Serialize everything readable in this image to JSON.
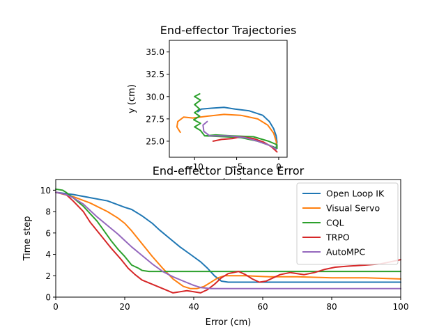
{
  "colors": {
    "Open Loop IK": "#1f77b4",
    "Visual Servo": "#ff7f0e",
    "CQL": "#2ca02c",
    "TRPO": "#d62728",
    "AutoMPC": "#9467bd"
  },
  "chart_data": [
    {
      "type": "line",
      "title": "End-effector Trajectories",
      "xlabel": "x (cm)",
      "ylabel": "y (cm)",
      "xlim": [
        -13,
        1
      ],
      "ylim": [
        23.2,
        36.3
      ],
      "xticks": [
        -10,
        -5,
        0
      ],
      "xtick_labels": [
        "−10",
        "−5",
        "0"
      ],
      "yticks": [
        25.0,
        27.5,
        30.0,
        32.5,
        35.0
      ],
      "ytick_labels": [
        "25.0",
        "27.5",
        "30.0",
        "32.5",
        "35.0"
      ],
      "grid": false,
      "legend": "none",
      "series": [
        {
          "name": "Open Loop IK",
          "points": [
            [
              -0.3,
              24.3
            ],
            [
              -0.2,
              24.9
            ],
            [
              -0.3,
              25.6
            ],
            [
              -0.6,
              26.4
            ],
            [
              -1.1,
              27.2
            ],
            [
              -1.9,
              27.9
            ],
            [
              -3.5,
              28.4
            ],
            [
              -5.2,
              28.6
            ],
            [
              -6.5,
              28.8
            ],
            [
              -8.0,
              28.7
            ],
            [
              -9.2,
              28.6
            ],
            [
              -9.6,
              28.3
            ]
          ]
        },
        {
          "name": "Visual Servo",
          "points": [
            [
              -0.2,
              24.3
            ],
            [
              -0.3,
              25.0
            ],
            [
              -0.6,
              25.9
            ],
            [
              -1.3,
              26.8
            ],
            [
              -2.5,
              27.5
            ],
            [
              -4.5,
              27.9
            ],
            [
              -6.5,
              28.0
            ],
            [
              -8.5,
              27.8
            ],
            [
              -10.2,
              27.6
            ],
            [
              -11.3,
              27.7
            ],
            [
              -12.0,
              27.2
            ],
            [
              -12.1,
              26.6
            ],
            [
              -11.7,
              26.0
            ]
          ]
        },
        {
          "name": "CQL",
          "points": [
            [
              -9.4,
              30.3
            ],
            [
              -10.0,
              30.0
            ],
            [
              -9.3,
              29.6
            ],
            [
              -10.0,
              29.1
            ],
            [
              -9.4,
              28.6
            ],
            [
              -10.0,
              28.2
            ],
            [
              -9.4,
              27.8
            ],
            [
              -10.1,
              27.4
            ],
            [
              -9.3,
              27.0
            ],
            [
              -10.0,
              26.6
            ],
            [
              -9.3,
              26.2
            ],
            [
              -8.8,
              25.6
            ],
            [
              -6.5,
              25.5
            ],
            [
              -4.5,
              25.4
            ],
            [
              -2.5,
              25.0
            ],
            [
              -1.0,
              24.5
            ],
            [
              -0.2,
              24.2
            ],
            [
              -0.2,
              24.6
            ],
            [
              -1.2,
              25.0
            ],
            [
              -3.0,
              25.5
            ],
            [
              -5.5,
              25.6
            ],
            [
              -7.5,
              25.7
            ],
            [
              -8.8,
              25.6
            ]
          ]
        },
        {
          "name": "TRPO",
          "points": [
            [
              -7.8,
              25.0
            ],
            [
              -6.8,
              25.2
            ],
            [
              -5.5,
              25.3
            ],
            [
              -4.5,
              25.5
            ],
            [
              -3.0,
              25.3
            ],
            [
              -1.8,
              24.9
            ],
            [
              -0.9,
              24.4
            ],
            [
              -0.2,
              23.8
            ]
          ]
        },
        {
          "name": "AutoMPC",
          "points": [
            [
              -8.5,
              27.2
            ],
            [
              -9.0,
              26.8
            ],
            [
              -8.9,
              26.1
            ],
            [
              -8.2,
              25.6
            ],
            [
              -6.0,
              25.6
            ],
            [
              -4.0,
              25.4
            ],
            [
              -2.5,
              25.0
            ],
            [
              -1.0,
              24.5
            ],
            [
              -0.3,
              24.1
            ]
          ]
        }
      ]
    },
    {
      "type": "line",
      "title": "End-effector Distance Error",
      "xlabel": "Error (cm)",
      "ylabel": "Time step",
      "xlim": [
        0,
        100
      ],
      "ylim": [
        0,
        11
      ],
      "xticks": [
        0,
        20,
        40,
        60,
        80,
        100
      ],
      "xtick_labels": [
        "0",
        "20",
        "40",
        "60",
        "80",
        "100"
      ],
      "yticks": [
        0,
        2,
        4,
        6,
        8,
        10
      ],
      "ytick_labels": [
        "0",
        "2",
        "4",
        "6",
        "8",
        "10"
      ],
      "grid": false,
      "legend": "top-right",
      "series": [
        {
          "name": "Open Loop IK",
          "points": [
            [
              0,
              9.8
            ],
            [
              5,
              9.6
            ],
            [
              10,
              9.3
            ],
            [
              15,
              9.0
            ],
            [
              20,
              8.4
            ],
            [
              22,
              8.2
            ],
            [
              25,
              7.6
            ],
            [
              28,
              6.9
            ],
            [
              30,
              6.3
            ],
            [
              33,
              5.5
            ],
            [
              36,
              4.7
            ],
            [
              39,
              4.0
            ],
            [
              42,
              3.3
            ],
            [
              44,
              2.7
            ],
            [
              46,
              2.0
            ],
            [
              48,
              1.5
            ],
            [
              50,
              1.4
            ],
            [
              60,
              1.4
            ],
            [
              70,
              1.4
            ],
            [
              80,
              1.4
            ],
            [
              90,
              1.4
            ],
            [
              100,
              1.4
            ]
          ]
        },
        {
          "name": "Visual Servo",
          "points": [
            [
              0,
              9.8
            ],
            [
              5,
              9.4
            ],
            [
              10,
              8.8
            ],
            [
              15,
              8.0
            ],
            [
              18,
              7.4
            ],
            [
              20,
              6.9
            ],
            [
              22,
              6.2
            ],
            [
              25,
              5.0
            ],
            [
              28,
              3.8
            ],
            [
              31,
              2.7
            ],
            [
              34,
              1.7
            ],
            [
              37,
              1.0
            ],
            [
              39,
              0.8
            ],
            [
              41,
              0.8
            ],
            [
              43,
              1.0
            ],
            [
              45,
              1.4
            ],
            [
              47,
              1.8
            ],
            [
              49,
              2.0
            ],
            [
              55,
              2.0
            ],
            [
              62,
              1.9
            ],
            [
              70,
              1.9
            ],
            [
              80,
              1.8
            ],
            [
              90,
              1.8
            ],
            [
              100,
              1.7
            ]
          ]
        },
        {
          "name": "CQL",
          "points": [
            [
              0,
              10.1
            ],
            [
              2,
              10.0
            ],
            [
              3,
              9.8
            ],
            [
              5,
              9.3
            ],
            [
              8,
              8.5
            ],
            [
              10,
              7.8
            ],
            [
              12,
              7.1
            ],
            [
              14,
              6.2
            ],
            [
              16,
              5.3
            ],
            [
              18,
              4.5
            ],
            [
              20,
              3.8
            ],
            [
              22,
              3.0
            ],
            [
              24,
              2.7
            ],
            [
              25,
              2.5
            ],
            [
              27,
              2.4
            ],
            [
              35,
              2.4
            ],
            [
              45,
              2.4
            ],
            [
              55,
              2.4
            ],
            [
              65,
              2.4
            ],
            [
              75,
              2.4
            ],
            [
              85,
              2.4
            ],
            [
              100,
              2.4
            ]
          ]
        },
        {
          "name": "TRPO",
          "points": [
            [
              0,
              9.8
            ],
            [
              3,
              9.6
            ],
            [
              5,
              9.0
            ],
            [
              8,
              8.0
            ],
            [
              10,
              7.0
            ],
            [
              13,
              5.8
            ],
            [
              16,
              4.6
            ],
            [
              19,
              3.5
            ],
            [
              21,
              2.7
            ],
            [
              23,
              2.1
            ],
            [
              25,
              1.6
            ],
            [
              28,
              1.2
            ],
            [
              31,
              0.8
            ],
            [
              34,
              0.4
            ],
            [
              36,
              0.5
            ],
            [
              38,
              0.6
            ],
            [
              40,
              0.5
            ],
            [
              42,
              0.4
            ],
            [
              44,
              0.7
            ],
            [
              46,
              1.2
            ],
            [
              48,
              1.8
            ],
            [
              50,
              2.2
            ],
            [
              53,
              2.4
            ],
            [
              55,
              2.1
            ],
            [
              57,
              1.7
            ],
            [
              59,
              1.4
            ],
            [
              61,
              1.5
            ],
            [
              63,
              1.8
            ],
            [
              65,
              2.1
            ],
            [
              68,
              2.3
            ],
            [
              72,
              2.1
            ],
            [
              75,
              2.3
            ],
            [
              78,
              2.6
            ],
            [
              81,
              2.8
            ],
            [
              85,
              2.9
            ],
            [
              90,
              3.0
            ],
            [
              94,
              3.1
            ],
            [
              97,
              3.3
            ],
            [
              100,
              3.5
            ]
          ]
        },
        {
          "name": "AutoMPC",
          "points": [
            [
              0,
              9.8
            ],
            [
              3,
              9.6
            ],
            [
              5,
              9.3
            ],
            [
              8,
              8.7
            ],
            [
              10,
              8.1
            ],
            [
              12,
              7.5
            ],
            [
              15,
              6.7
            ],
            [
              18,
              5.9
            ],
            [
              20,
              5.3
            ],
            [
              22,
              4.7
            ],
            [
              25,
              3.9
            ],
            [
              28,
              3.1
            ],
            [
              31,
              2.4
            ],
            [
              34,
              1.9
            ],
            [
              37,
              1.5
            ],
            [
              40,
              1.1
            ],
            [
              42,
              0.9
            ],
            [
              45,
              0.8
            ],
            [
              50,
              0.8
            ],
            [
              55,
              0.8
            ],
            [
              60,
              0.8
            ],
            [
              70,
              0.8
            ],
            [
              80,
              0.8
            ],
            [
              90,
              0.8
            ],
            [
              100,
              0.8
            ]
          ]
        }
      ]
    }
  ]
}
